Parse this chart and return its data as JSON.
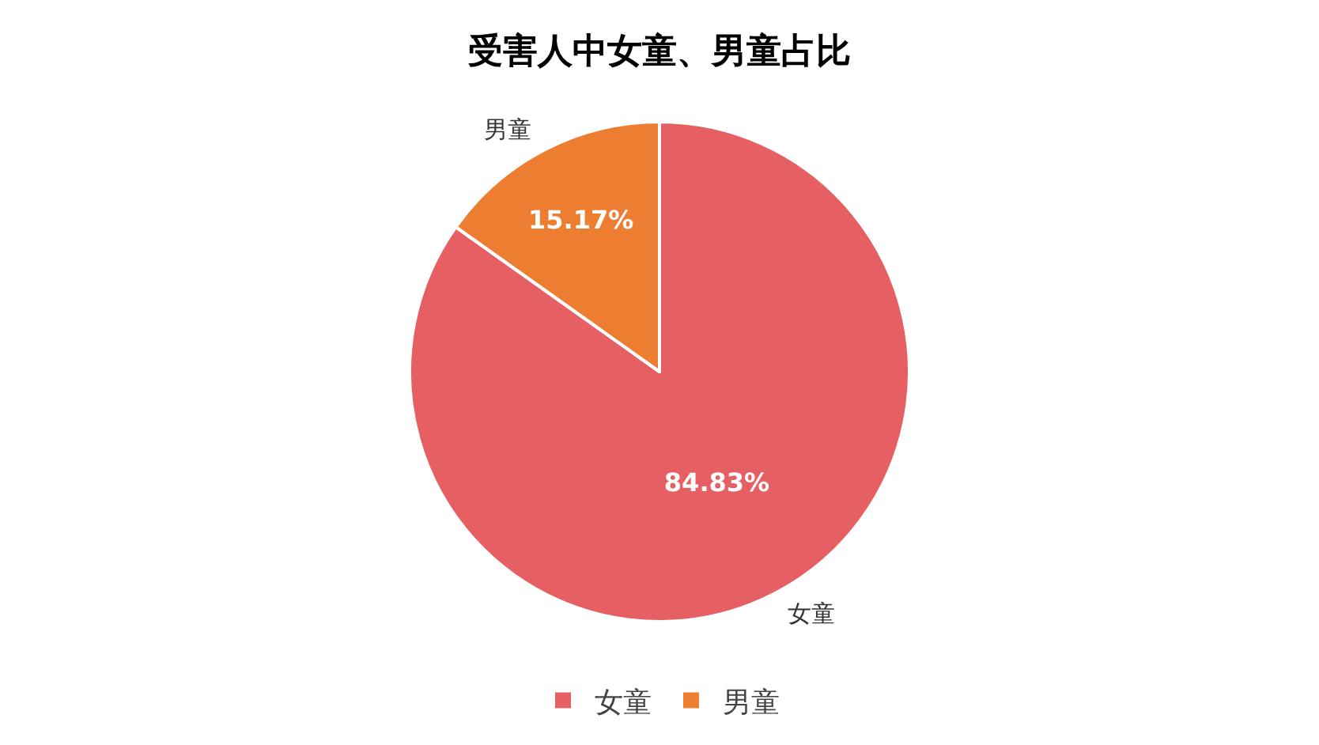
{
  "chart_data": {
    "type": "pie",
    "title": "受害人中女童、男童占比",
    "categories": [
      "女童",
      "男童"
    ],
    "values": [
      84.83,
      15.17
    ],
    "value_labels": [
      "84.83%",
      "15.17%"
    ],
    "colors": [
      "#e65f62",
      "#ed7d31"
    ],
    "legend": "bottom"
  }
}
